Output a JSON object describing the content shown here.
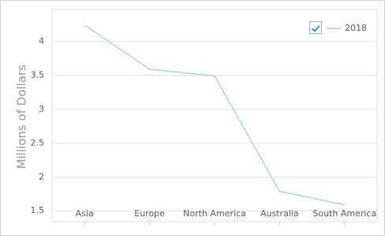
{
  "chart_data": {
    "type": "line",
    "categories": [
      "Asia",
      "Europe",
      "North America",
      "Australia",
      "South America"
    ],
    "series": [
      {
        "name": "2018",
        "color": "#8fd3e4",
        "values": [
          4.24,
          3.59,
          3.49,
          1.79,
          1.59
        ]
      }
    ],
    "y_label": "Millions of Dollars",
    "ylim": [
      1.34,
      4.47
    ],
    "yticks": [
      1.5,
      2,
      2.5,
      3,
      3.5,
      4
    ],
    "grid": true,
    "legend": "top-right"
  }
}
